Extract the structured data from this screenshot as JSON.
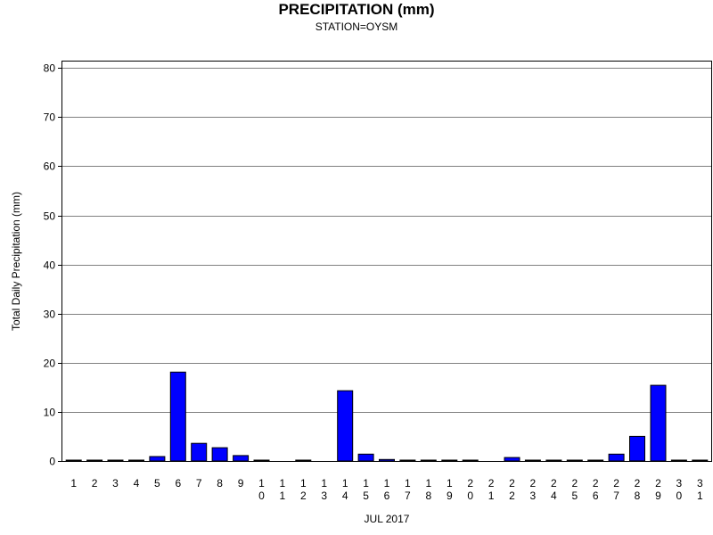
{
  "chart_data": {
    "type": "bar",
    "title": "PRECIPITATION (mm)",
    "subtitle": "STATION=OYSM",
    "xlabel": "JUL 2017",
    "ylabel": "Total Daily Precipitation (mm)",
    "ylim": [
      0,
      82
    ],
    "yticks": [
      0,
      10,
      20,
      30,
      40,
      50,
      60,
      70,
      80
    ],
    "grid": true,
    "bar_color": "#0000ff",
    "categories": [
      "1",
      "2",
      "3",
      "4",
      "5",
      "6",
      "7",
      "8",
      "9",
      "10",
      "11",
      "12",
      "13",
      "14",
      "15",
      "16",
      "17",
      "18",
      "19",
      "20",
      "21",
      "22",
      "23",
      "24",
      "25",
      "26",
      "27",
      "28",
      "29",
      "30",
      "31"
    ],
    "values": [
      0.1,
      0.1,
      0.1,
      0.1,
      0.9,
      18.1,
      3.6,
      2.7,
      1.1,
      0.1,
      null,
      0.1,
      null,
      14.3,
      1.4,
      0.3,
      0.1,
      0.1,
      0.1,
      0.1,
      null,
      0.7,
      0.1,
      0.1,
      0.1,
      0.1,
      1.4,
      5.0,
      15.4,
      0.1,
      0.1
    ]
  }
}
